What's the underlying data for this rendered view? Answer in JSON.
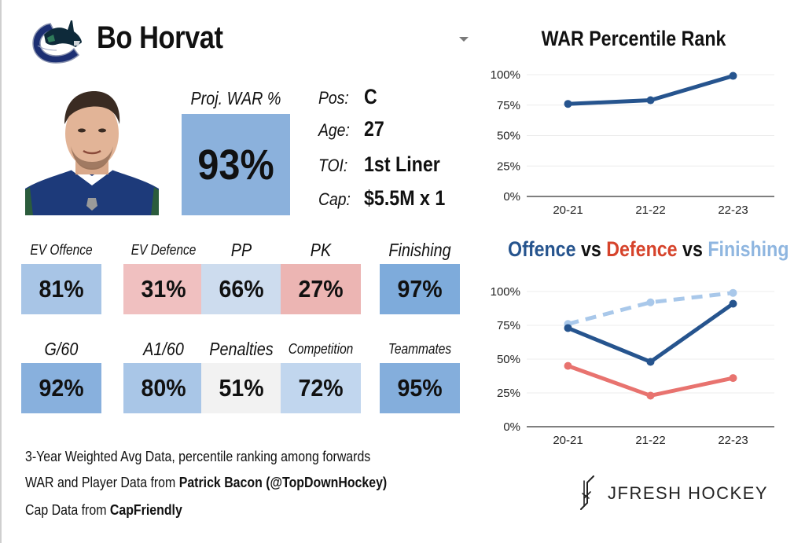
{
  "player": {
    "name": "Bo Horvat",
    "team_logo_icon": "canucks-orca-logo-icon",
    "headshot": "player-headshot-photo"
  },
  "projection": {
    "label": "Proj. WAR %",
    "value": "93%",
    "color": "#8bb1dc"
  },
  "info": [
    {
      "key": "Pos:",
      "value": "C"
    },
    {
      "key": "Age:",
      "value": "27"
    },
    {
      "key": "TOI:",
      "value": "1st Liner"
    },
    {
      "key": "Cap:",
      "value": "$5.5M x 1"
    }
  ],
  "stats_row1": [
    {
      "label": "EV Offence",
      "value": "81%",
      "color": "#a8c5e6"
    },
    {
      "label": "EV Defence",
      "value": "31%",
      "color": "#f0c0c0"
    },
    {
      "label": "PP",
      "value": "66%",
      "color": "#cddcee"
    },
    {
      "label": "PK",
      "value": "27%",
      "color": "#ecb5b3"
    },
    {
      "label": "Finishing",
      "value": "97%",
      "color": "#7eabdb"
    }
  ],
  "stats_row2": [
    {
      "label": "G/60",
      "value": "92%",
      "color": "#88b0dd"
    },
    {
      "label": "A1/60",
      "value": "80%",
      "color": "#a9c6e7"
    },
    {
      "label": "Penalties",
      "value": "51%",
      "color": "#f2f2f2"
    },
    {
      "label": "Competition",
      "value": "72%",
      "color": "#c1d6ee"
    },
    {
      "label": "Teammates",
      "value": "95%",
      "color": "#84aedc"
    }
  ],
  "footnotes": {
    "line1": "3-Year Weighted Avg Data, percentile ranking among forwards",
    "line2_prefix": "WAR and Player Data from ",
    "line2_bold": "Patrick Bacon (@TopDownHockey)",
    "line3_prefix": "Cap Data from ",
    "line3_bold": "CapFriendly"
  },
  "brand": {
    "icon": "jfresh-crossed-sticks-icon",
    "text": "JFRESH HOCKEY"
  },
  "chart_data": [
    {
      "type": "line",
      "title": "WAR Percentile Rank",
      "categories": [
        "20-21",
        "21-22",
        "22-23"
      ],
      "series": [
        {
          "name": "WAR",
          "values": [
            76,
            79,
            99
          ],
          "color": "#26548e",
          "dashed": false
        }
      ],
      "yticks": [
        "0%",
        "25%",
        "50%",
        "75%",
        "100%"
      ],
      "ylim": [
        0,
        100
      ],
      "xlabel": "",
      "ylabel": "",
      "grid": true
    },
    {
      "type": "line",
      "title_parts": [
        {
          "text": "Offence",
          "color": "#26548e"
        },
        {
          "text": " vs ",
          "color": "#111111"
        },
        {
          "text": "Defence",
          "color": "#d6432b"
        },
        {
          "text": " vs ",
          "color": "#111111"
        },
        {
          "text": "Finishing",
          "color": "#8fb6e0"
        }
      ],
      "categories": [
        "20-21",
        "21-22",
        "22-23"
      ],
      "series": [
        {
          "name": "Finishing",
          "values": [
            76,
            92,
            99
          ],
          "color": "#a9c8ea",
          "dashed": true
        },
        {
          "name": "Offence",
          "values": [
            73,
            48,
            91
          ],
          "color": "#26548e",
          "dashed": false
        },
        {
          "name": "Defence",
          "values": [
            45,
            23,
            36
          ],
          "color": "#e8736f",
          "dashed": false
        }
      ],
      "yticks": [
        "0%",
        "25%",
        "50%",
        "75%",
        "100%"
      ],
      "ylim": [
        0,
        100
      ],
      "xlabel": "",
      "ylabel": "",
      "grid": true
    }
  ]
}
